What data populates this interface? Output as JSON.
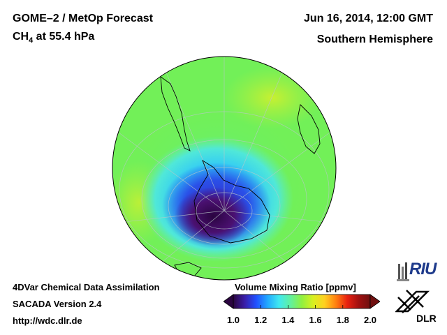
{
  "header": {
    "product": "GOME–2 / MetOp Forecast",
    "species": "CH",
    "species_sub": "4",
    "species_rest": " at 55.4 hPa",
    "datetime": "Jun 16, 2014, 12:00 GMT",
    "region": "Southern Hemisphere"
  },
  "footer": {
    "line1": "4DVar Chemical Data Assimilation",
    "line2": "SACADA Version 2.4",
    "line3": "http://wdc.dlr.de"
  },
  "colorbar": {
    "title": "Volume Mixing Ratio [ppmv]",
    "ticks": [
      "1.0",
      "1.2",
      "1.4",
      "1.6",
      "1.8",
      "2.0"
    ],
    "colors": [
      "#2b0540",
      "#3a1ea8",
      "#2050ff",
      "#20a8ff",
      "#40e8f0",
      "#60f0a0",
      "#90f040",
      "#d8f020",
      "#ffd020",
      "#ff8010",
      "#e82010",
      "#a01010",
      "#701010"
    ],
    "min_value": 1.0,
    "max_value": 2.0
  },
  "map": {
    "projection": "orthographic",
    "hemisphere": "south",
    "ocean_color": "#6ef05c",
    "low_color": "#2a0440"
  },
  "logos": {
    "riu": "RIU",
    "dlr": "DLR"
  }
}
